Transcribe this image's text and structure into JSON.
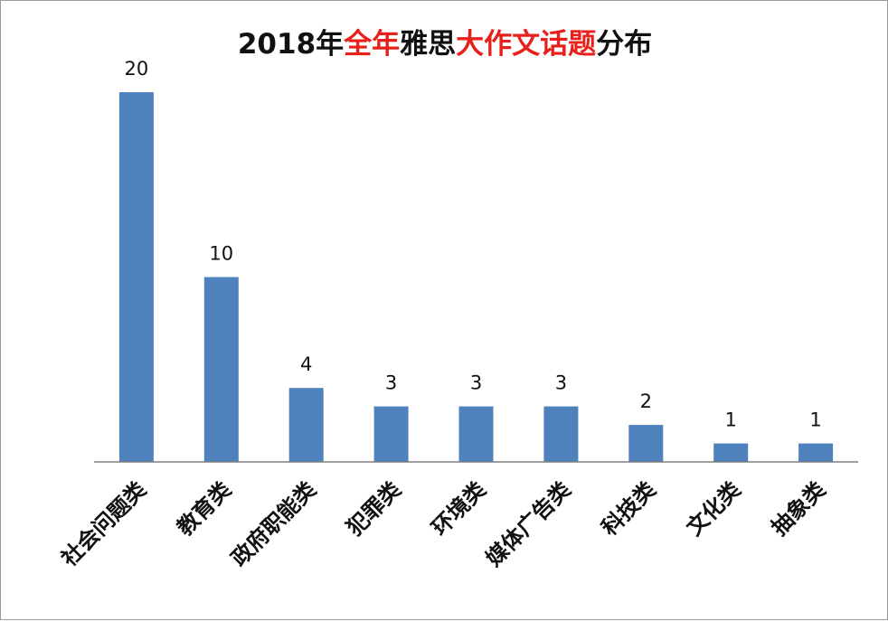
{
  "chart_data": {
    "type": "bar",
    "title_parts": [
      {
        "text": "2018年",
        "color": "#111111"
      },
      {
        "text": "全年",
        "color": "#e8201b"
      },
      {
        "text": "雅思",
        "color": "#111111"
      },
      {
        "text": "大作文话题",
        "color": "#e8201b"
      },
      {
        "text": "分布",
        "color": "#111111"
      }
    ],
    "categories": [
      "社会问题类",
      "教育类",
      "政府职能类",
      "犯罪类",
      "环境类",
      "媒体广告类",
      "科技类",
      "文化类",
      "抽象类"
    ],
    "values": [
      20,
      10,
      4,
      3,
      3,
      3,
      2,
      1,
      1
    ],
    "ylim": [
      0,
      20
    ],
    "grid": false,
    "legend": "none",
    "bar_color": "#4f81bd",
    "axis_color": "#7f7f7f"
  }
}
